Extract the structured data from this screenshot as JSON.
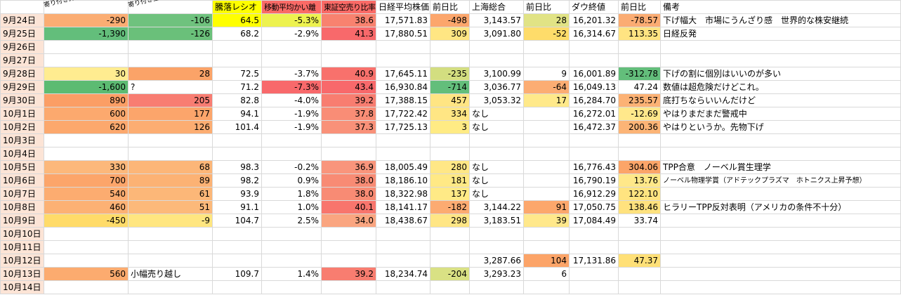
{
  "colors": {
    "date_col_bg": "#FCE4D6",
    "grid": "#D9D9D9",
    "ratio_header_bg": "#FFFF00",
    "ma_header_bg": "#FA6A66",
    "short_header_bg": "#FA6A66",
    "scale_green": "#63BE7B",
    "scale_yellow": "#FFEB84",
    "scale_red": "#F8696B"
  },
  "sheet": {
    "header": {
      "corner": "",
      "foreign": "寄り付き外国人売り買い(万株)",
      "amount": "寄り付き金額ベース(億)",
      "ratio": "騰落レシオ",
      "ma": "移動平均かい離",
      "short": "東証空売り比率",
      "nikkei": "日経平均株価",
      "change": "前日比",
      "shanghai": "上海総合",
      "dow": "ダウ終値",
      "remarks": "備考"
    },
    "rows": [
      {
        "date": "9月24日",
        "cells": [
          {
            "v": "-290",
            "bg": "#FBAD73"
          },
          {
            "v": "-106",
            "bg": "#6FC27E"
          },
          {
            "v": "64.5",
            "bg": "#FFFF00"
          },
          {
            "v": "-5.3%",
            "bg": "#EDF24F"
          },
          {
            "v": "38.6",
            "bg": "#F8826F"
          },
          {
            "v": "17,571.83"
          },
          {
            "v": "-498",
            "bg": "#FCA66C"
          },
          {
            "v": "3,143.57"
          },
          {
            "v": "28",
            "bg": "#E1E385"
          },
          {
            "v": "16,201.32"
          },
          {
            "v": "-78.57",
            "bg": "#FBAC73"
          }
        ],
        "remark": {
          "v": "下げ幅大　市場にうんざり感　世界的な株安継続"
        }
      },
      {
        "date": "9月25日",
        "cells": [
          {
            "v": "-1,390",
            "bg": "#63BE7B"
          },
          {
            "v": "-126",
            "bg": "#6AC07A"
          },
          {
            "v": "68.2"
          },
          {
            "v": "-2.9%"
          },
          {
            "v": "41.3",
            "bg": "#F8696B"
          },
          {
            "v": "17,880.51"
          },
          {
            "v": "309",
            "bg": "#FFE683"
          },
          {
            "v": "3,091.80"
          },
          {
            "v": "-52",
            "bg": "#FEDC6A"
          },
          {
            "v": "16,314.67"
          },
          {
            "v": "113.35",
            "bg": "#FFE482"
          }
        ],
        "remark": {
          "v": "日経反発"
        }
      },
      {
        "date": "9月26日",
        "cells": [],
        "remark": null
      },
      {
        "date": "9月27日",
        "cells": [],
        "remark": null
      },
      {
        "date": "9月28日",
        "cells": [
          {
            "v": "30",
            "bg": "#FFEC90"
          },
          {
            "v": "28",
            "bg": "#FBA368"
          },
          {
            "v": "72.5"
          },
          {
            "v": "-3.7%"
          },
          {
            "v": "40.9",
            "bg": "#F8716C"
          },
          {
            "v": "17,645.11"
          },
          {
            "v": "-235",
            "bg": "#D3DE80"
          },
          {
            "v": "3,100.99"
          },
          {
            "v": "9"
          },
          {
            "v": "16,001.89"
          },
          {
            "v": "-312.78",
            "bg": "#63BE7B"
          }
        ],
        "remark": {
          "v": "下げの割に個別はいいのが多い"
        }
      },
      {
        "date": "9月29日",
        "cells": [
          {
            "v": "-1,600",
            "bg": "#5CBB72"
          },
          {
            "v": "?",
            "align": "l"
          },
          {
            "v": "71.2"
          },
          {
            "v": "-7.3%",
            "bg": "#F8696B"
          },
          {
            "v": "43.4",
            "bg": "#F8696B"
          },
          {
            "v": "16,930.84"
          },
          {
            "v": "-714",
            "bg": "#63BE7B"
          },
          {
            "v": "3,036.77"
          },
          {
            "v": "-64",
            "bg": "#FCAD73"
          },
          {
            "v": "16,049.13"
          },
          {
            "v": "47.24"
          }
        ],
        "remark": {
          "v": "数値は超危険だけどこれ。"
        }
      },
      {
        "date": "9月30日",
        "cells": [
          {
            "v": "890",
            "bg": "#FB9E65"
          },
          {
            "v": "205",
            "bg": "#F87D72"
          },
          {
            "v": "82.8"
          },
          {
            "v": "-4.0%"
          },
          {
            "v": "39.2",
            "bg": "#F87D70"
          },
          {
            "v": "17,388.15"
          },
          {
            "v": "457",
            "bg": "#FFE583"
          },
          {
            "v": "3,053.32"
          },
          {
            "v": "17",
            "bg": "#FFE98A"
          },
          {
            "v": "16,284.70"
          },
          {
            "v": "235.57",
            "bg": "#FCB275"
          }
        ],
        "remark": {
          "v": "底打ちならいいんだけど"
        }
      },
      {
        "date": "10月1日",
        "cells": [
          {
            "v": "600",
            "bg": "#FCA96E"
          },
          {
            "v": "177",
            "bg": "#FCA56B"
          },
          {
            "v": "94.1"
          },
          {
            "v": "-1.9%"
          },
          {
            "v": "37.8",
            "bg": "#F98D76"
          },
          {
            "v": "17,722.42"
          },
          {
            "v": "334",
            "bg": "#FFE684"
          },
          {
            "v": "なし",
            "align": "l"
          },
          null,
          {
            "v": "16,272.01"
          },
          {
            "v": "-12.69",
            "bg": "#FFE88B"
          }
        ],
        "remark": {
          "v": "やはりまだまだ警戒中"
        }
      },
      {
        "date": "10月2日",
        "cells": [
          {
            "v": "620",
            "bg": "#FCA86D"
          },
          {
            "v": "126",
            "bg": "#FCAD72"
          },
          {
            "v": "101.4"
          },
          {
            "v": "-1.9%"
          },
          {
            "v": "37.3",
            "bg": "#F99179"
          },
          {
            "v": "17,725.13"
          },
          {
            "v": "3",
            "bg": "#FFEB84"
          },
          {
            "v": "なし",
            "align": "l"
          },
          null,
          {
            "v": "16,472.37"
          },
          {
            "v": "200.36",
            "bg": "#FCB476"
          }
        ],
        "remark": {
          "v": "やはりというか。先物下げ"
        }
      },
      {
        "date": "10月3日",
        "cells": [],
        "remark": null
      },
      {
        "date": "10月4日",
        "cells": [],
        "remark": null
      },
      {
        "date": "10月5日",
        "cells": [
          {
            "v": "330",
            "bg": "#FCB87B"
          },
          {
            "v": "68",
            "bg": "#FCB678"
          },
          {
            "v": "98.3"
          },
          {
            "v": "-0.2%"
          },
          {
            "v": "36.9",
            "bg": "#F9957C"
          },
          {
            "v": "18,005.49"
          },
          {
            "v": "280",
            "bg": "#FFE786"
          },
          {
            "v": "なし",
            "align": "l"
          },
          null,
          {
            "v": "16,776.43"
          },
          {
            "v": "304.06",
            "bg": "#FCA569"
          }
        ],
        "remark": {
          "v": "TPP合意　ノーベル賞生理学"
        }
      },
      {
        "date": "10月6日",
        "cells": [
          {
            "v": "700",
            "bg": "#FCA56A"
          },
          {
            "v": "89",
            "bg": "#FCB274"
          },
          {
            "v": "98.2"
          },
          {
            "v": "0.9%"
          },
          {
            "v": "38.0",
            "bg": "#F88B74"
          },
          {
            "v": "18,186.10"
          },
          {
            "v": "181",
            "bg": "#FFE985"
          },
          {
            "v": "なし",
            "align": "l"
          },
          null,
          {
            "v": "16,790.19"
          },
          {
            "v": "13.76",
            "bg": "#FFE889"
          }
        ],
        "remark": {
          "v": "ノーベル物理学賞（アドテックプラズマ　ホトニクス上昇予想）",
          "small": true
        }
      },
      {
        "date": "10月7日",
        "cells": [
          {
            "v": "540",
            "bg": "#FCAC70"
          },
          {
            "v": "61",
            "bg": "#FCB778"
          },
          {
            "v": "93.9"
          },
          {
            "v": "1.8%"
          },
          {
            "v": "38.0",
            "bg": "#F88B74"
          },
          {
            "v": "18,322.98"
          },
          {
            "v": "137",
            "bg": "#FFEA86"
          },
          {
            "v": "なし",
            "align": "l"
          },
          null,
          {
            "v": "16,912.29"
          },
          {
            "v": "122.10",
            "bg": "#FFE480"
          }
        ],
        "remark": null
      },
      {
        "date": "10月8日",
        "cells": [
          {
            "v": "460",
            "bg": "#FCB174"
          },
          {
            "v": "51",
            "bg": "#FCB97A"
          },
          {
            "v": "91.1"
          },
          {
            "v": "1.0%"
          },
          {
            "v": "40.1",
            "bg": "#F8756D"
          },
          {
            "v": "18,141.17"
          },
          {
            "v": "-182",
            "bg": "#FCAB71"
          },
          {
            "v": "3,144.22"
          },
          {
            "v": "91",
            "bg": "#FCA76C"
          },
          {
            "v": "17,050.75"
          },
          {
            "v": "138.46",
            "bg": "#FFE27E"
          }
        ],
        "remark": {
          "v": "ヒラリーTPP反対表明（アメリカの条件不十分）"
        }
      },
      {
        "date": "10月9日",
        "cells": [
          {
            "v": "-450",
            "bg": "#FFDB69"
          },
          {
            "v": "-9",
            "bg": "#FFE680"
          },
          {
            "v": "104.7"
          },
          {
            "v": "2.5%"
          },
          {
            "v": "34.0",
            "bg": "#FAA580"
          },
          {
            "v": "18,438.67"
          },
          {
            "v": "298",
            "bg": "#FFE685"
          },
          {
            "v": "3,183.51"
          },
          {
            "v": "39",
            "bg": "#FFE88B"
          },
          {
            "v": "17,084.49"
          },
          {
            "v": "33.74"
          }
        ],
        "remark": null
      },
      {
        "date": "10月10日",
        "cells": [],
        "remark": null
      },
      {
        "date": "10月11日",
        "cells": [],
        "remark": null
      },
      {
        "date": "10月12日",
        "cells": [
          null,
          null,
          null,
          null,
          null,
          null,
          null,
          {
            "v": "3,287.66"
          },
          {
            "v": "104",
            "bg": "#FCA468"
          },
          {
            "v": "17,131.86"
          },
          {
            "v": "47.37",
            "bg": "#FFE077"
          }
        ],
        "remark": null
      },
      {
        "date": "10月13日",
        "cells": [
          {
            "v": "560",
            "bg": "#FCAB6F"
          },
          {
            "v": "小幅売り越し",
            "align": "l"
          },
          {
            "v": "109.7"
          },
          {
            "v": "1.4%"
          },
          {
            "v": "39.2",
            "bg": "#F87D70"
          },
          {
            "v": "18,234.74"
          },
          {
            "v": "-204",
            "bg": "#D9E184"
          },
          {
            "v": "3,293.23"
          },
          {
            "v": "6"
          },
          null,
          null
        ],
        "remark": null
      },
      {
        "date": "10月14日",
        "cells": [],
        "remark": null
      }
    ]
  }
}
